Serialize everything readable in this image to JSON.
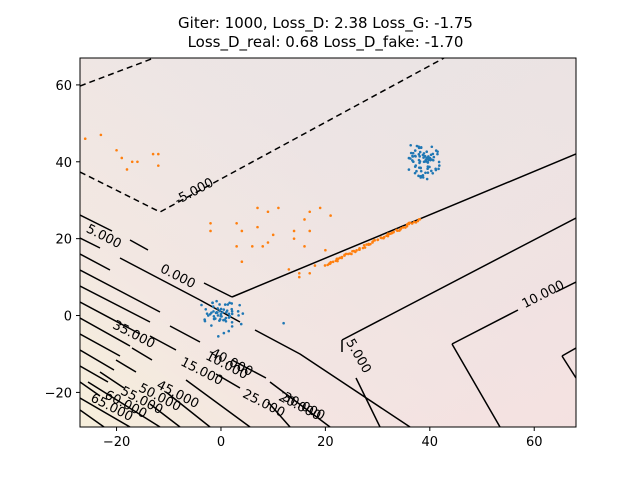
{
  "chart_data": {
    "type": "scatter",
    "title_lines": [
      "Giter: 1000, Loss_D: 2.38 Loss_G: -1.75",
      "Loss_D_real: 0.68 Loss_D_fake: -1.70"
    ],
    "xlim": [
      -27,
      68
    ],
    "ylim": [
      -29,
      67
    ],
    "xticks": [
      -20,
      0,
      20,
      40,
      60
    ],
    "yticks": [
      -20,
      0,
      20,
      40,
      60
    ],
    "grid": false,
    "colors": {
      "real": "#1f77b4",
      "fake": "#ff7f0e",
      "contour": "#000000"
    },
    "contour_levels": [
      -5,
      0,
      5,
      10,
      15,
      20,
      25,
      30,
      35,
      40,
      45,
      50,
      55,
      60,
      65
    ],
    "contour_labels": [
      "-5.000",
      "0.000",
      "5.000",
      "5.000",
      "10.000",
      "10.000",
      "15.000",
      "20.000",
      "25.000",
      "30.000",
      "35.000",
      "40.000",
      "45.000",
      "50.000",
      "55.000",
      "60.000",
      "65.000"
    ],
    "series": [
      {
        "key": "real",
        "clusters": [
          {
            "center": [
              0,
              0
            ],
            "spread": 3,
            "count": 60
          },
          {
            "center": [
              39,
              40
            ],
            "spread": 3,
            "count": 80
          }
        ],
        "outliers": [
          [
            12,
            -2
          ]
        ]
      },
      {
        "key": "fake",
        "line": {
          "from": [
            20,
            13
          ],
          "to": [
            38,
            25
          ],
          "count": 70
        },
        "points": [
          [
            -26,
            46
          ],
          [
            -23,
            47
          ],
          [
            -20,
            43
          ],
          [
            -19,
            41
          ],
          [
            -17,
            40
          ],
          [
            -16,
            40
          ],
          [
            -13,
            42
          ],
          [
            -12,
            39
          ],
          [
            -12,
            42
          ],
          [
            -18,
            38
          ],
          [
            -2,
            22
          ],
          [
            -2,
            24
          ],
          [
            3,
            24
          ],
          [
            4,
            22
          ],
          [
            7,
            28
          ],
          [
            9,
            27
          ],
          [
            11,
            28
          ],
          [
            7,
            23
          ],
          [
            8,
            18
          ],
          [
            9,
            19
          ],
          [
            10,
            21
          ],
          [
            14,
            22
          ],
          [
            16,
            25
          ],
          [
            17,
            27
          ],
          [
            17,
            22
          ],
          [
            16,
            18
          ],
          [
            19,
            28
          ],
          [
            21,
            26
          ],
          [
            4,
            14
          ],
          [
            6,
            18
          ],
          [
            3,
            18
          ],
          [
            13,
            12
          ],
          [
            15,
            10
          ],
          [
            15,
            11
          ],
          [
            17,
            11
          ],
          [
            18,
            13
          ],
          [
            20,
            17
          ],
          [
            14,
            20
          ]
        ]
      }
    ]
  }
}
